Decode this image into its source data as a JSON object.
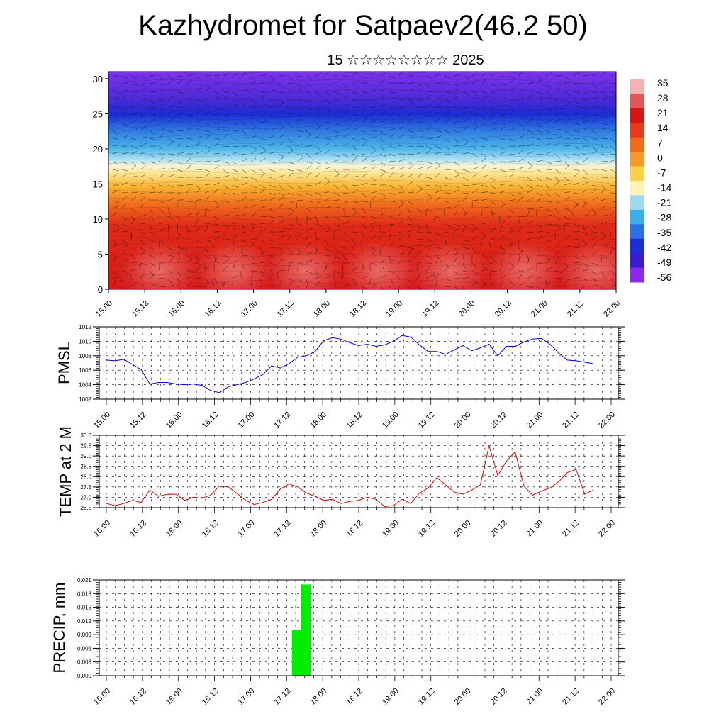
{
  "title": "Kazhydromet for Satpaev2(46.2 50)",
  "subtitle": "15 ☆☆☆☆☆☆☆☆ 2025",
  "chart_data": [
    {
      "type": "heatmap",
      "name": "temperature-cross-section",
      "y_ticks": [
        "0",
        "5",
        "10",
        "15",
        "20",
        "25",
        "30"
      ],
      "ylim": [
        0,
        31
      ],
      "x_ticks": [
        "15.00",
        "15.12",
        "16.00",
        "16.12",
        "17.00",
        "17.12",
        "18.00",
        "18.12",
        "19.00",
        "19.12",
        "20.00",
        "20.12",
        "21.00",
        "21.12",
        "22.00"
      ],
      "colorbar": {
        "labels": [
          "35",
          "28",
          "21",
          "14",
          "7",
          "0",
          "-7",
          "-14",
          "-21",
          "-28",
          "-35",
          "-42",
          "-49",
          "-56"
        ],
        "colors": [
          "#f3b3b3",
          "#e55656",
          "#d61515",
          "#e63a1a",
          "#f26a1a",
          "#f89a2a",
          "#fbd24a",
          "#fdf2b8",
          "#9fd9f0",
          "#39b0ea",
          "#2a6fe6",
          "#1b2fd8",
          "#3a1bd0",
          "#8a2ae8"
        ]
      },
      "profile_stops": [
        {
          "level": 0,
          "color": "#d61a1a"
        },
        {
          "level": 9,
          "color": "#e02a18"
        },
        {
          "level": 12,
          "color": "#f06a1c"
        },
        {
          "level": 14.5,
          "color": "#f8b030"
        },
        {
          "level": 16.5,
          "color": "#fde690"
        },
        {
          "level": 17.5,
          "color": "#fbf4d6"
        },
        {
          "level": 18.5,
          "color": "#aee0f2"
        },
        {
          "level": 20,
          "color": "#4cb6ea"
        },
        {
          "level": 22.5,
          "color": "#2f7ce2"
        },
        {
          "level": 25,
          "color": "#1c2cd6"
        },
        {
          "level": 27,
          "color": "#4c2ad8"
        },
        {
          "level": 31,
          "color": "#7e32ea"
        }
      ]
    },
    {
      "type": "line",
      "name": "pmsl",
      "ylabel": "PMSL",
      "ylim": [
        1002,
        1012
      ],
      "y_ticks": [
        "1012",
        "1010",
        "1008",
        "1006",
        "1004",
        "1002"
      ],
      "x_ticks": [
        "15.00",
        "15.12",
        "16.00",
        "16.12",
        "17.00",
        "17.12",
        "18.00",
        "18.12",
        "19.00",
        "19.12",
        "20.00",
        "20.12",
        "21.00",
        "21.12",
        "22.00"
      ],
      "color": "#0000dd",
      "values": [
        1007.4,
        1007.3,
        1007.5,
        1006.8,
        1006.1,
        1004.1,
        1004.3,
        1004.3,
        1004.1,
        1004.0,
        1004.1,
        1003.9,
        1003.2,
        1002.9,
        1003.7,
        1004.0,
        1004.3,
        1004.8,
        1005.4,
        1006.6,
        1006.3,
        1006.9,
        1007.8,
        1008.0,
        1008.6,
        1010.1,
        1010.5,
        1010.3,
        1009.8,
        1009.4,
        1009.6,
        1009.3,
        1009.5,
        1010.0,
        1010.8,
        1010.6,
        1009.5,
        1008.6,
        1008.6,
        1008.2,
        1008.8,
        1009.4,
        1008.7,
        1009.1,
        1009.6,
        1008.0,
        1009.3,
        1009.3,
        1009.9,
        1010.3,
        1010.4,
        1009.6,
        1008.4,
        1007.4,
        1007.3,
        1007.1,
        1006.9
      ]
    },
    {
      "type": "line",
      "name": "temp-2m",
      "ylabel": "TEMP at 2 M",
      "ylim": [
        26.5,
        30.0
      ],
      "y_ticks": [
        "30.0",
        "29.5",
        "29.0",
        "28.5",
        "28.0",
        "27.5",
        "27.0",
        "26.5"
      ],
      "x_ticks": [
        "15.00",
        "15.12",
        "16.00",
        "16.12",
        "17.00",
        "17.12",
        "18.00",
        "18.12",
        "19.00",
        "19.12",
        "20.00",
        "20.12",
        "21.00",
        "21.12",
        "22.00"
      ],
      "color": "#dd0000",
      "values": [
        26.7,
        26.6,
        26.7,
        26.85,
        26.75,
        27.35,
        27.05,
        27.15,
        27.15,
        26.85,
        27.0,
        26.95,
        27.1,
        27.55,
        27.5,
        27.2,
        26.85,
        26.65,
        26.75,
        26.9,
        27.4,
        27.65,
        27.5,
        27.2,
        27.05,
        26.85,
        26.9,
        26.7,
        26.8,
        26.85,
        27.0,
        26.9,
        26.55,
        26.6,
        26.9,
        26.7,
        27.2,
        27.45,
        27.95,
        27.6,
        27.25,
        27.15,
        27.35,
        27.6,
        29.5,
        28.05,
        28.75,
        29.2,
        27.55,
        27.1,
        27.3,
        27.45,
        27.75,
        28.2,
        28.35,
        27.15,
        27.35
      ]
    },
    {
      "type": "bar",
      "name": "precip",
      "ylabel": "PRECIP, mm",
      "ylim": [
        0,
        0.021
      ],
      "y_ticks": [
        "0.021",
        "0.018",
        "0.015",
        "0.012",
        "0.009",
        "0.006",
        "0.003",
        "0.000"
      ],
      "x_ticks": [
        "15.00",
        "15.12",
        "16.00",
        "16.12",
        "17.00",
        "17.12",
        "18.00",
        "18.12",
        "19.00",
        "19.12",
        "20.00",
        "20.12",
        "21.00",
        "21.12",
        "22.00"
      ],
      "color": "#00ee00",
      "bars": [
        {
          "x_start": 17.6,
          "x_end": 17.72,
          "value": 0.01
        },
        {
          "x_start": 17.72,
          "x_end": 17.85,
          "value": 0.02
        }
      ]
    }
  ]
}
